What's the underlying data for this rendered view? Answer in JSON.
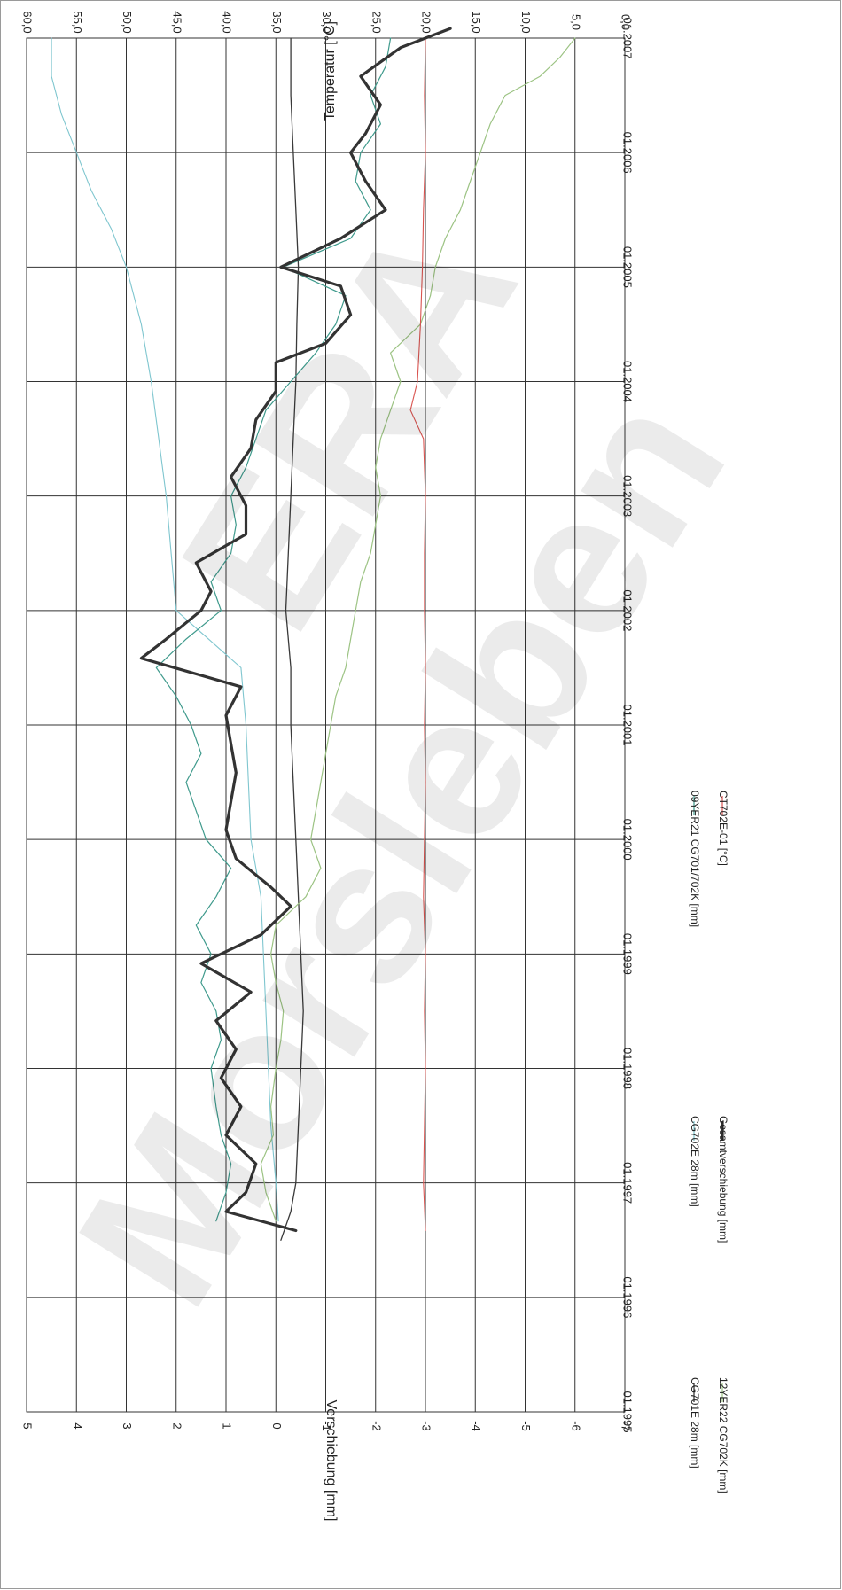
{
  "watermark": {
    "line1": "ERA",
    "line2": "Morsleben"
  },
  "chart_data": {
    "type": "line",
    "orientation": "rotated-90-clockwise",
    "x_axis": {
      "kind": "date",
      "range": [
        "1995-01",
        "2007-01"
      ],
      "ticks": [
        "01.1995",
        "01.1996",
        "01.1997",
        "01.1998",
        "01.1999",
        "01.2000",
        "01.2001",
        "01.2002",
        "01.2003",
        "01.2004",
        "01.2005",
        "01.2006",
        "01.2007"
      ]
    },
    "y_left": {
      "label": "Verschiebung [mm]",
      "range": [
        -7,
        5
      ],
      "ticks": [
        "5",
        "4",
        "3",
        "2",
        "1",
        "0",
        "-1",
        "-2",
        "-3",
        "-4",
        "-5",
        "-6",
        "-7"
      ]
    },
    "y_right": {
      "label": "Temperatur [°C]",
      "range": [
        0,
        60
      ],
      "ticks": [
        "60,0",
        "55,0",
        "50,0",
        "45,0",
        "40,0",
        "35,0",
        "30,0",
        "25,0",
        "20,0",
        "15,0",
        "10,0",
        "5,0",
        "0,0"
      ]
    },
    "grid": true,
    "legend_position": "bottom",
    "series": [
      {
        "name": "CG701E 28m [mm]",
        "axis": "left",
        "color": "#3a3a3a",
        "width": 1.3,
        "points": [
          [
            "1996-07",
            -0.1
          ],
          [
            "1996-10",
            -0.3
          ],
          [
            "1997-01",
            -0.4
          ],
          [
            "1997-07",
            -0.45
          ],
          [
            "1998-01",
            -0.5
          ],
          [
            "1998-07",
            -0.55
          ],
          [
            "1999-01",
            -0.5
          ],
          [
            "1999-07",
            -0.45
          ],
          [
            "2000-01",
            -0.4
          ],
          [
            "2000-07",
            -0.35
          ],
          [
            "2001-01",
            -0.3
          ],
          [
            "2001-07",
            -0.3
          ],
          [
            "2002-01",
            -0.2
          ],
          [
            "2002-07",
            -0.25
          ],
          [
            "2003-01",
            -0.3
          ],
          [
            "2003-07",
            -0.35
          ],
          [
            "2004-01",
            -0.4
          ],
          [
            "2004-07",
            -0.42
          ],
          [
            "2005-01",
            -0.45
          ],
          [
            "2005-07",
            -0.4
          ],
          [
            "2006-01",
            -0.35
          ],
          [
            "2006-07",
            -0.3
          ],
          [
            "2007-01",
            -0.3
          ]
        ]
      },
      {
        "name": "CG702E 28m [mm]",
        "axis": "left",
        "color": "#7fc6cf",
        "width": 1.1,
        "points": [
          [
            "1996-09",
            -0.05
          ],
          [
            "1997-01",
            0.0
          ],
          [
            "1997-07",
            0.1
          ],
          [
            "1998-01",
            0.15
          ],
          [
            "1998-07",
            0.2
          ],
          [
            "1999-01",
            0.25
          ],
          [
            "1999-07",
            0.3
          ],
          [
            "2000-01",
            0.5
          ],
          [
            "2000-07",
            0.55
          ],
          [
            "2001-01",
            0.6
          ],
          [
            "2001-07",
            0.7
          ],
          [
            "2002-01",
            2.0
          ],
          [
            "2002-07",
            2.1
          ],
          [
            "2003-01",
            2.2
          ],
          [
            "2003-07",
            2.35
          ],
          [
            "2004-01",
            2.5
          ],
          [
            "2004-07",
            2.7
          ],
          [
            "2005-01",
            3.0
          ],
          [
            "2005-05",
            3.3
          ],
          [
            "2005-09",
            3.7
          ],
          [
            "2006-01",
            4.0
          ],
          [
            "2006-05",
            4.3
          ],
          [
            "2006-09",
            4.5
          ],
          [
            "2007-01",
            4.5
          ]
        ]
      },
      {
        "name": "12YER22 CG702K [mm]",
        "axis": "left",
        "color": "#9cc383",
        "width": 1.2,
        "points": [
          [
            "1996-09",
            0.0
          ],
          [
            "1996-12",
            0.2
          ],
          [
            "1997-03",
            0.3
          ],
          [
            "1997-06",
            0.05
          ],
          [
            "1997-09",
            0.1
          ],
          [
            "1998-01",
            0.0
          ],
          [
            "1998-04",
            -0.1
          ],
          [
            "1998-07",
            -0.15
          ],
          [
            "1998-10",
            0.0
          ],
          [
            "1999-01",
            0.1
          ],
          [
            "1999-04",
            0.0
          ],
          [
            "1999-07",
            -0.6
          ],
          [
            "1999-10",
            -0.9
          ],
          [
            "2000-01",
            -0.7
          ],
          [
            "2000-04",
            -0.8
          ],
          [
            "2000-07",
            -0.9
          ],
          [
            "2000-10",
            -1.0
          ],
          [
            "2001-01",
            -1.1
          ],
          [
            "2001-04",
            -1.2
          ],
          [
            "2001-07",
            -1.4
          ],
          [
            "2001-10",
            -1.5
          ],
          [
            "2002-01",
            -1.6
          ],
          [
            "2002-04",
            -1.7
          ],
          [
            "2002-07",
            -1.9
          ],
          [
            "2002-10",
            -2.0
          ],
          [
            "2003-01",
            -2.1
          ],
          [
            "2003-04",
            -2.0
          ],
          [
            "2003-07",
            -2.1
          ],
          [
            "2003-10",
            -2.3
          ],
          [
            "2004-01",
            -2.5
          ],
          [
            "2004-04",
            -2.3
          ],
          [
            "2004-07",
            -2.9
          ],
          [
            "2004-10",
            -3.1
          ],
          [
            "2005-01",
            -3.2
          ],
          [
            "2005-04",
            -3.4
          ],
          [
            "2005-07",
            -3.7
          ],
          [
            "2005-10",
            -3.9
          ],
          [
            "2006-01",
            -4.1
          ],
          [
            "2006-04",
            -4.3
          ],
          [
            "2006-07",
            -4.6
          ],
          [
            "2006-09",
            -5.3
          ],
          [
            "2006-11",
            -5.7
          ],
          [
            "2007-01",
            -6.0
          ]
        ]
      },
      {
        "name": "09YER21 CG701/702K [mm]",
        "axis": "left",
        "color": "#3f9a8c",
        "width": 1.2,
        "points": [
          [
            "1996-09",
            1.2
          ],
          [
            "1996-12",
            1.0
          ],
          [
            "1997-03",
            0.9
          ],
          [
            "1997-06",
            1.1
          ],
          [
            "1997-09",
            1.2
          ],
          [
            "1998-01",
            1.3
          ],
          [
            "1998-04",
            1.1
          ],
          [
            "1998-07",
            1.2
          ],
          [
            "1998-10",
            1.5
          ],
          [
            "1999-01",
            1.3
          ],
          [
            "1999-04",
            1.6
          ],
          [
            "1999-07",
            1.2
          ],
          [
            "1999-10",
            0.9
          ],
          [
            "2000-01",
            1.4
          ],
          [
            "2000-04",
            1.6
          ],
          [
            "2000-07",
            1.8
          ],
          [
            "2000-10",
            1.5
          ],
          [
            "2001-01",
            1.7
          ],
          [
            "2001-04",
            2.0
          ],
          [
            "2001-07",
            2.4
          ],
          [
            "2001-10",
            1.8
          ],
          [
            "2002-01",
            1.1
          ],
          [
            "2002-04",
            1.3
          ],
          [
            "2002-07",
            0.9
          ],
          [
            "2002-10",
            0.8
          ],
          [
            "2003-01",
            0.9
          ],
          [
            "2003-04",
            0.6
          ],
          [
            "2003-07",
            0.4
          ],
          [
            "2003-10",
            0.2
          ],
          [
            "2004-01",
            -0.3
          ],
          [
            "2004-04",
            -0.8
          ],
          [
            "2004-07",
            -1.2
          ],
          [
            "2004-10",
            -1.4
          ],
          [
            "2005-01",
            -0.15
          ],
          [
            "2005-04",
            -1.5
          ],
          [
            "2005-07",
            -1.9
          ],
          [
            "2005-10",
            -1.6
          ],
          [
            "2006-01",
            -1.7
          ],
          [
            "2006-04",
            -2.1
          ],
          [
            "2006-07",
            -1.9
          ],
          [
            "2006-10",
            -2.2
          ],
          [
            "2007-01",
            -2.3
          ]
        ]
      },
      {
        "name": "Gesamtverschiebung [mm]",
        "axis": "left",
        "color": "#333333",
        "width": 3.2,
        "points": [
          [
            "1996-08",
            -0.4
          ],
          [
            "1996-10",
            1.0
          ],
          [
            "1996-12",
            0.6
          ],
          [
            "1997-03",
            0.4
          ],
          [
            "1997-06",
            1.0
          ],
          [
            "1997-09",
            0.7
          ],
          [
            "1997-12",
            1.1
          ],
          [
            "1998-03",
            0.8
          ],
          [
            "1998-06",
            1.2
          ],
          [
            "1998-09",
            0.5
          ],
          [
            "1998-12",
            1.5
          ],
          [
            "1999-03",
            0.3
          ],
          [
            "1999-06",
            -0.3
          ],
          [
            "1999-08",
            0.1
          ],
          [
            "1999-11",
            0.8
          ],
          [
            "2000-02",
            1.0
          ],
          [
            "2000-05",
            0.9
          ],
          [
            "2000-08",
            0.8
          ],
          [
            "2000-11",
            0.9
          ],
          [
            "2001-02",
            1.0
          ],
          [
            "2001-05",
            0.7
          ],
          [
            "2001-08",
            2.7
          ],
          [
            "2001-10",
            2.2
          ],
          [
            "2002-01",
            1.5
          ],
          [
            "2002-03",
            1.3
          ],
          [
            "2002-06",
            1.6
          ],
          [
            "2002-09",
            0.6
          ],
          [
            "2002-12",
            0.6
          ],
          [
            "2003-03",
            0.9
          ],
          [
            "2003-06",
            0.5
          ],
          [
            "2003-09",
            0.4
          ],
          [
            "2003-12",
            0.0
          ],
          [
            "2004-03",
            0.0
          ],
          [
            "2004-05",
            -1.0
          ],
          [
            "2004-08",
            -1.5
          ],
          [
            "2004-11",
            -1.3
          ],
          [
            "2005-01",
            -0.1
          ],
          [
            "2005-04",
            -1.3
          ],
          [
            "2005-07",
            -2.2
          ],
          [
            "2005-10",
            -1.8
          ],
          [
            "2006-01",
            -1.5
          ],
          [
            "2006-03",
            -1.8
          ],
          [
            "2006-06",
            -2.1
          ],
          [
            "2006-09",
            -1.7
          ],
          [
            "2006-12",
            -2.5
          ],
          [
            "2007-02",
            -3.5
          ]
        ]
      },
      {
        "name": "CT702E-01 [°C]",
        "axis": "right",
        "color": "#d9534f",
        "width": 1.1,
        "points": [
          [
            "1996-08",
            20.0
          ],
          [
            "1997-01",
            20.2
          ],
          [
            "1997-07",
            20.1
          ],
          [
            "1998-01",
            20.0
          ],
          [
            "1998-07",
            20.1
          ],
          [
            "1999-01",
            20.0
          ],
          [
            "1999-07",
            20.2
          ],
          [
            "2000-01",
            20.1
          ],
          [
            "2000-07",
            20.0
          ],
          [
            "2001-01",
            20.1
          ],
          [
            "2001-07",
            20.0
          ],
          [
            "2002-01",
            20.1
          ],
          [
            "2002-07",
            20.1
          ],
          [
            "2003-01",
            20.0
          ],
          [
            "2003-07",
            20.2
          ],
          [
            "2003-10",
            21.5
          ],
          [
            "2004-01",
            20.8
          ],
          [
            "2004-07",
            20.5
          ],
          [
            "2005-01",
            20.3
          ],
          [
            "2005-07",
            20.2
          ],
          [
            "2006-01",
            20.0
          ],
          [
            "2006-07",
            20.1
          ],
          [
            "2007-01",
            20.0
          ]
        ]
      }
    ]
  }
}
